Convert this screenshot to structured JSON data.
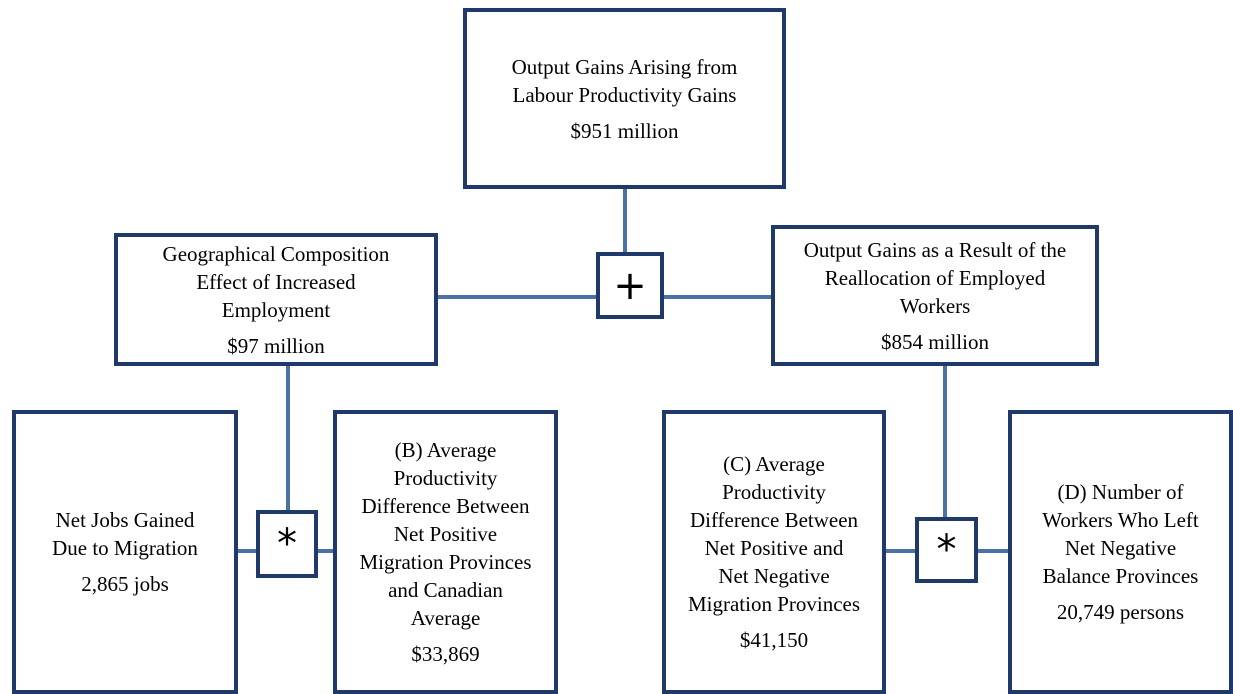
{
  "nodes": [
    {
      "lines": [
        "Output Gains Arising from",
        "Labour Productivity Gains"
      ],
      "value": "$951 million"
    },
    {
      "lines": [
        "Geographical Composition",
        "Effect of Increased",
        "Employment"
      ],
      "value": "$97 million"
    },
    {
      "lines": [
        "Output Gains as a Result of the",
        "Reallocation of Employed",
        "Workers"
      ],
      "value": "$854 million"
    },
    {
      "lines": [
        "Net Jobs Gained",
        "Due to Migration"
      ],
      "value": "2,865 jobs"
    },
    {
      "lines": [
        "(B) Average",
        "Productivity",
        "Difference Between",
        "Net Positive",
        "Migration Provinces",
        "and Canadian",
        "Average"
      ],
      "value": "$33,869"
    },
    {
      "lines": [
        "(C) Average",
        "Productivity",
        "Difference Between",
        "Net Positive and",
        "Net Negative",
        "Migration Provinces"
      ],
      "value": "$41,150"
    },
    {
      "lines": [
        "(D) Number of",
        "Workers Who Left",
        "Net Negative",
        "Balance Provinces"
      ],
      "value": "20,749 persons"
    }
  ],
  "operators": [
    "+",
    "*",
    "*"
  ]
}
